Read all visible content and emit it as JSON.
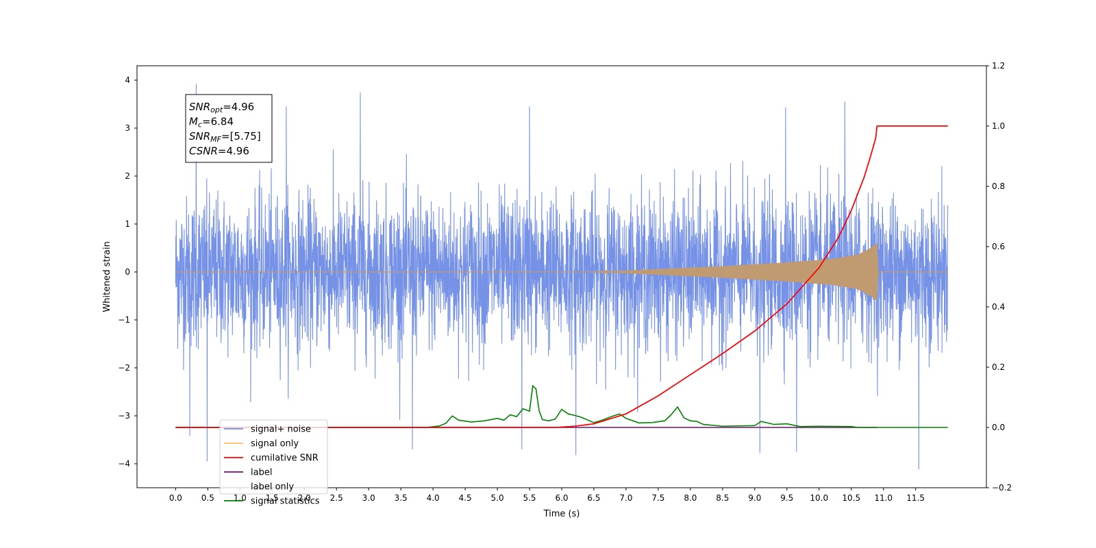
{
  "chart_data": {
    "type": "line",
    "title": "",
    "xlabel": "Time (s)",
    "ylabel": "Whitened strain",
    "y2label": "",
    "xlim": [
      -0.6,
      12.6
    ],
    "ylim": [
      -4.5,
      4.3
    ],
    "y2lim": [
      -0.2,
      1.2
    ],
    "x_ticks": [
      0.0,
      0.5,
      1.0,
      1.5,
      2.0,
      2.5,
      3.0,
      3.5,
      4.0,
      4.5,
      5.0,
      5.5,
      6.0,
      6.5,
      7.0,
      7.5,
      8.0,
      8.5,
      9.0,
      9.5,
      10.0,
      10.5,
      11.0,
      11.5
    ],
    "x_tick_labels": [
      "0.0",
      "0.5",
      "1.0",
      "1.5",
      "2.0",
      "2.5",
      "3.0",
      "3.5",
      "4.0",
      "4.5",
      "5.0",
      "5.5",
      "6.0",
      "6.5",
      "7.0",
      "7.5",
      "8.0",
      "8.5",
      "9.0",
      "9.5",
      "10.0",
      "10.5",
      "11.0",
      "11.5"
    ],
    "y_ticks": [
      -4,
      -3,
      -2,
      -1,
      0,
      1,
      2,
      3,
      4
    ],
    "y_tick_labels": [
      "−4",
      "−3",
      "−2",
      "−1",
      "0",
      "1",
      "2",
      "3",
      "4"
    ],
    "y2_ticks": [
      -0.2,
      0.0,
      0.2,
      0.4,
      0.6,
      0.8,
      1.0,
      1.2
    ],
    "y2_tick_labels": [
      "−0.2",
      "0.0",
      "0.2",
      "0.4",
      "0.6",
      "0.8",
      "1.0",
      "1.2"
    ],
    "grid": false,
    "legend_position": "lower-left",
    "series": [
      {
        "name": "signal+ noise",
        "color": "#6f8ce6",
        "axis": "left",
        "kind": "noise",
        "x_range": [
          0.0,
          12.0
        ],
        "min": -3.95,
        "max": 3.95,
        "spikes": [
          {
            "x": 0.32,
            "y": 3.92
          },
          {
            "x": 2.87,
            "y": 3.74
          },
          {
            "x": 0.49,
            "y": -3.95
          },
          {
            "x": 11.55,
            "y": -4.12
          },
          {
            "x": 6.22,
            "y": -3.82
          },
          {
            "x": 9.08,
            "y": -3.77
          },
          {
            "x": 9.65,
            "y": -3.75
          },
          {
            "x": 3.68,
            "y": -3.7
          },
          {
            "x": 10.4,
            "y": 3.55
          },
          {
            "x": 1.72,
            "y": 3.45
          },
          {
            "x": 5.5,
            "y": 3.45
          },
          {
            "x": 9.48,
            "y": 3.43
          },
          {
            "x": 0.22,
            "y": -3.42
          },
          {
            "x": 5.38,
            "y": -3.7
          }
        ]
      },
      {
        "name": "signal only",
        "color": "#c09a70",
        "axis": "left",
        "kind": "chirp",
        "x": [
          0.0,
          6.5,
          7.5,
          8.5,
          9.5,
          10.2,
          10.6,
          10.8,
          10.9,
          10.92,
          12.0
        ],
        "amplitude": [
          0.0,
          0.0,
          0.06,
          0.12,
          0.2,
          0.27,
          0.36,
          0.5,
          0.6,
          0.0,
          0.0
        ]
      },
      {
        "name": "cumilative SNR",
        "color": "#ff0000",
        "axis": "right",
        "x": [
          0.0,
          5.9,
          6.2,
          6.5,
          7.0,
          7.5,
          8.0,
          8.5,
          9.0,
          9.5,
          10.0,
          10.3,
          10.5,
          10.7,
          10.8,
          10.88,
          10.9,
          12.0
        ],
        "y": [
          0.0,
          0.0,
          0.004,
          0.012,
          0.045,
          0.105,
          0.175,
          0.245,
          0.32,
          0.41,
          0.53,
          0.63,
          0.72,
          0.83,
          0.9,
          0.96,
          1.0,
          1.0
        ]
      },
      {
        "name": "label",
        "color": "#70106e",
        "axis": "right",
        "x": [
          0.0,
          10.9
        ],
        "y": [
          0.0,
          0.0
        ]
      },
      {
        "name": "label only",
        "color": "#a9a9a9",
        "axis": "right",
        "x": [],
        "y": []
      },
      {
        "name": "signal statistics",
        "color": "#008000",
        "axis": "right",
        "x": [
          0.0,
          3.9,
          4.1,
          4.2,
          4.3,
          4.4,
          4.6,
          4.8,
          4.9,
          5.0,
          5.1,
          5.2,
          5.3,
          5.4,
          5.5,
          5.55,
          5.6,
          5.65,
          5.7,
          5.8,
          5.9,
          6.0,
          6.1,
          6.2,
          6.3,
          6.5,
          6.6,
          6.8,
          6.9,
          7.0,
          7.2,
          7.4,
          7.6,
          7.7,
          7.8,
          7.9,
          8.0,
          8.1,
          8.2,
          8.5,
          9.0,
          9.1,
          9.3,
          9.5,
          9.7,
          10.0,
          10.5,
          10.6,
          11.0,
          12.0
        ],
        "y": [
          0.0,
          0.0,
          0.005,
          0.014,
          0.038,
          0.024,
          0.018,
          0.022,
          0.026,
          0.03,
          0.024,
          0.042,
          0.036,
          0.062,
          0.054,
          0.138,
          0.128,
          0.055,
          0.026,
          0.022,
          0.028,
          0.06,
          0.045,
          0.04,
          0.034,
          0.016,
          0.022,
          0.038,
          0.045,
          0.03,
          0.015,
          0.016,
          0.022,
          0.042,
          0.068,
          0.032,
          0.022,
          0.02,
          0.01,
          0.004,
          0.006,
          0.02,
          0.01,
          0.012,
          0.003,
          0.004,
          0.003,
          0.0,
          0.0,
          0.0
        ]
      }
    ],
    "annotation": {
      "lines": [
        {
          "base": "SNR",
          "sub": "opt",
          "rest": "=4.96"
        },
        {
          "base": "M",
          "sub": "c",
          "rest": "=6.84"
        },
        {
          "base": "SNR",
          "sub": "MF",
          "rest": "=[5.75]"
        },
        {
          "base": "CSNR",
          "sub": "",
          "rest": "=4.96"
        }
      ]
    }
  }
}
